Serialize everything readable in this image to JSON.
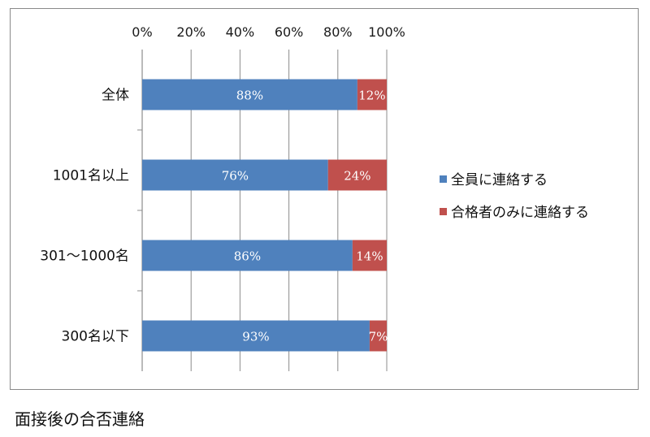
{
  "caption": "面接後の合否連絡",
  "chart_data": {
    "type": "bar",
    "orientation": "horizontal",
    "stacked": "percent",
    "categories": [
      "全体",
      "1001名以上",
      "301～1000名",
      "300名以下"
    ],
    "series": [
      {
        "name": "全員に連絡する",
        "values": [
          88,
          76,
          86,
          93
        ],
        "labels": [
          "88%",
          "76%",
          "86%",
          "93%"
        ],
        "color": "#4f81bd"
      },
      {
        "name": "合格者のみに連絡する",
        "values": [
          12,
          24,
          14,
          7
        ],
        "labels": [
          "12%",
          "24%",
          "14%",
          "7%"
        ],
        "color": "#c0504d"
      }
    ],
    "xlim": [
      0,
      100
    ],
    "xticks": [
      0,
      20,
      40,
      60,
      80,
      100
    ],
    "xtick_labels": [
      "0%",
      "20%",
      "40%",
      "60%",
      "80%",
      "100%"
    ],
    "axis_position": "top",
    "grid": true,
    "legend_position": "right"
  }
}
